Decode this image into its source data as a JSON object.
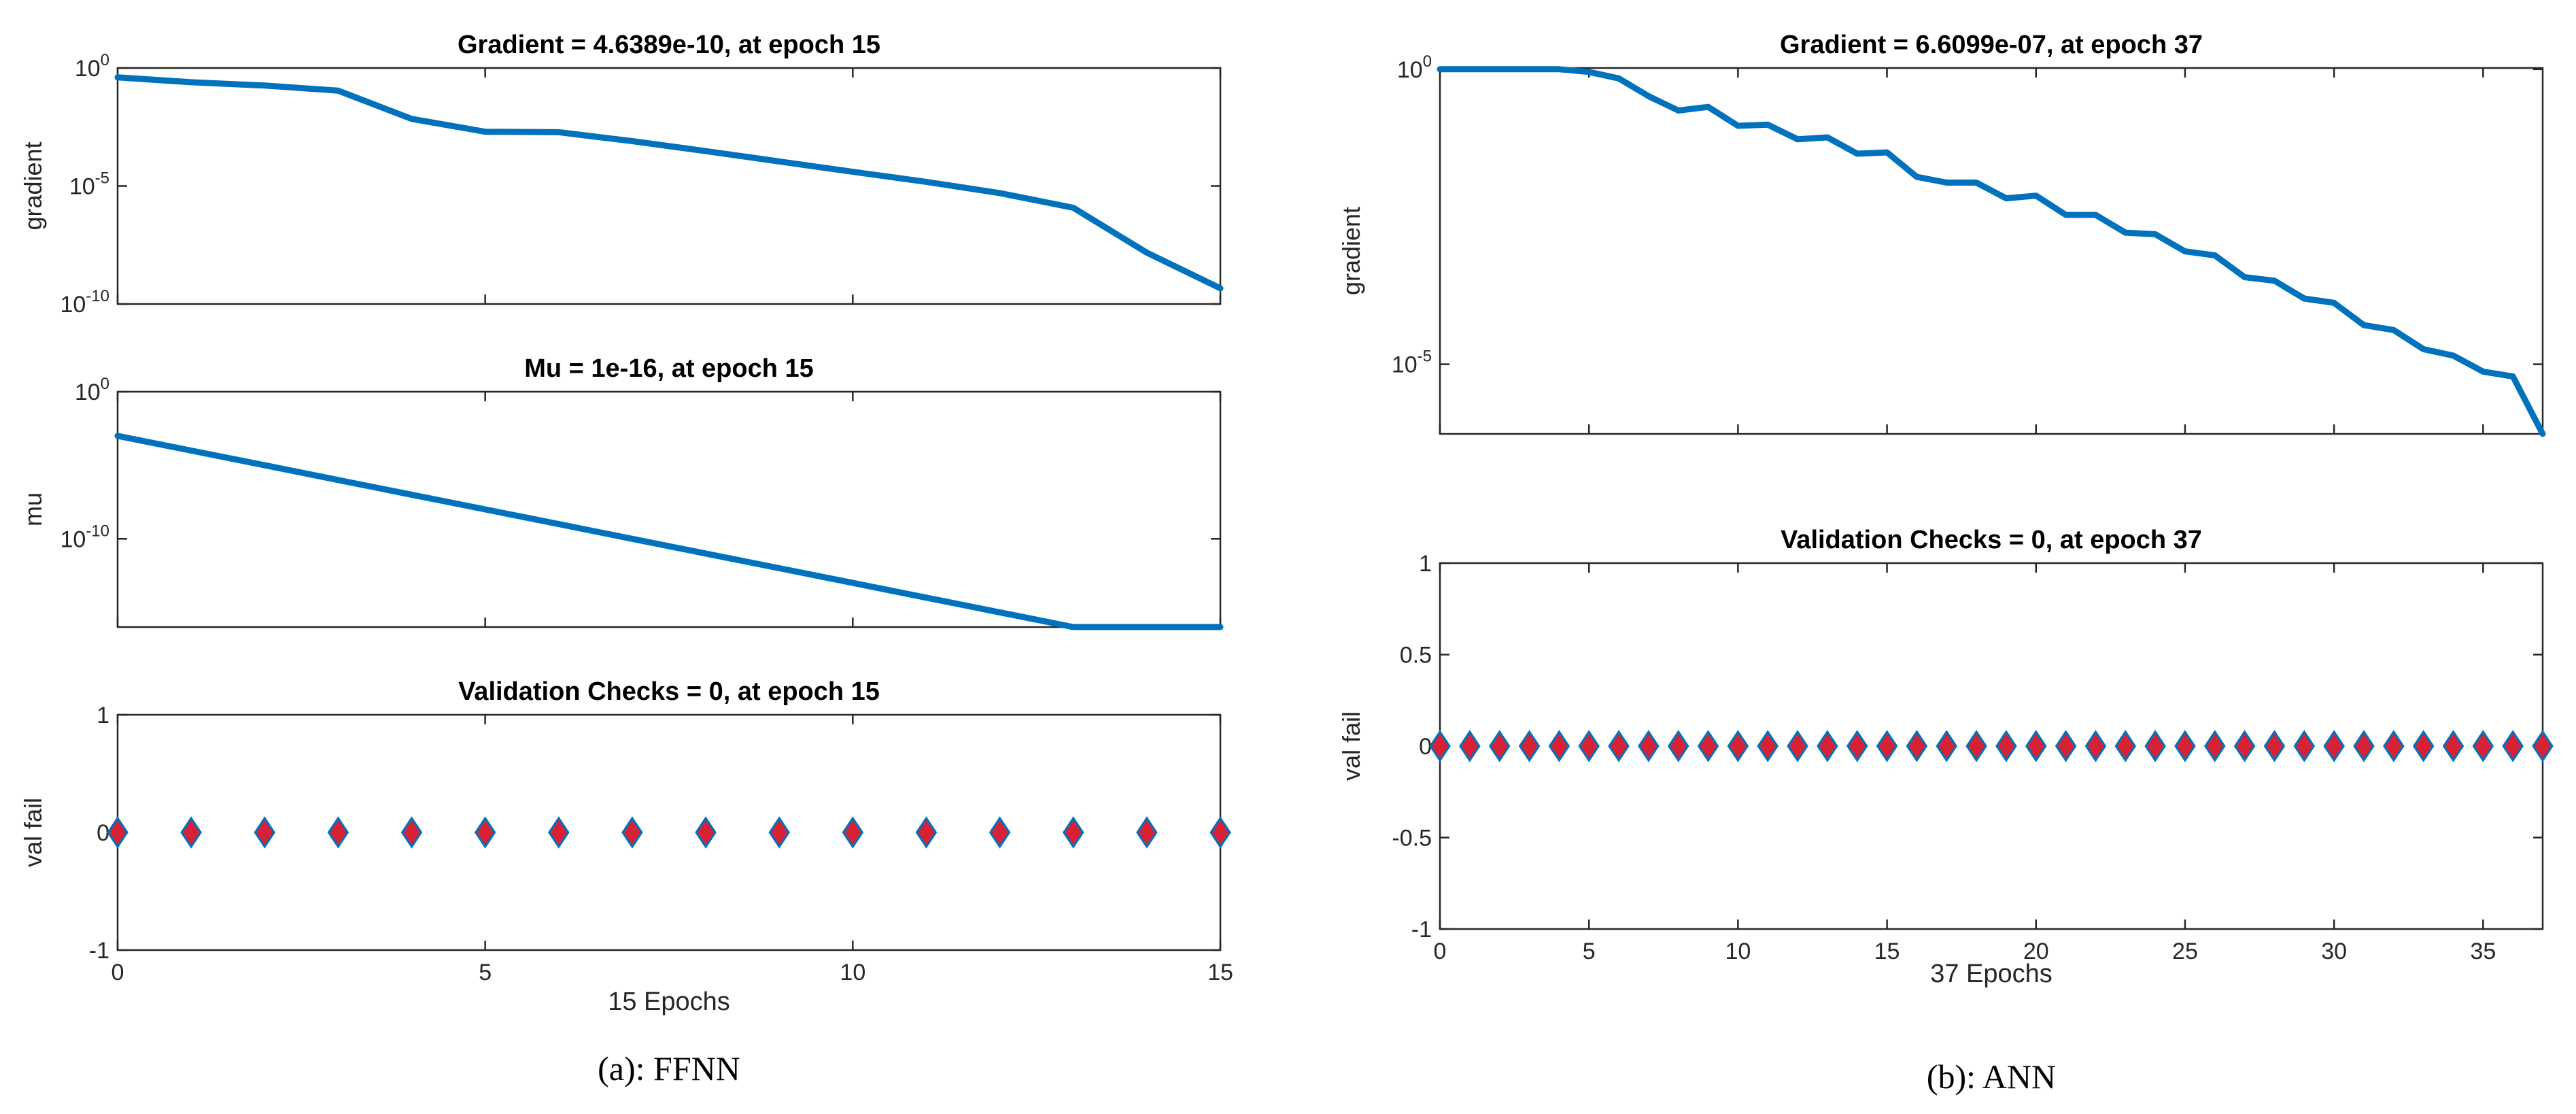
{
  "colors": {
    "line": "#0072bd",
    "marker_fill": "#d62234",
    "marker_edge": "#0072bd",
    "axis": "#262626"
  },
  "panels": [
    {
      "caption": "(a): FFNN",
      "xlabel": "15 Epochs",
      "xlim": [
        0,
        15
      ],
      "xticks": [
        0,
        5,
        10,
        15
      ],
      "charts": [
        {
          "type": "line",
          "title": "Gradient = 4.6389e-10, at epoch 15",
          "ylabel": "gradient",
          "yscale": "log",
          "ylim": [
            1e-10,
            1
          ],
          "yticks": [
            {
              "value": 1,
              "base": "10",
              "exp": "0"
            },
            {
              "value": 1e-05,
              "base": "10",
              "exp": "-5"
            },
            {
              "value": 1e-10,
              "base": "10",
              "exp": "-10"
            }
          ],
          "x": [
            0,
            1,
            2,
            3,
            4,
            5,
            6,
            7,
            8,
            9,
            10,
            11,
            12,
            13,
            14,
            15
          ],
          "values": [
            0.4,
            0.25,
            0.18,
            0.11,
            0.007,
            0.002,
            0.0019,
            0.0008,
            0.0003,
            0.00011,
            4e-05,
            1.5e-05,
            5e-06,
            1.2e-06,
            1.5e-08,
            4.6389e-10
          ]
        },
        {
          "type": "line",
          "title": "Mu = 1e-16, at epoch 15",
          "ylabel": "mu",
          "yscale": "log",
          "ylim": [
            1e-16,
            1
          ],
          "yticks": [
            {
              "value": 1,
              "base": "10",
              "exp": "0"
            },
            {
              "value": 1e-10,
              "base": "10",
              "exp": "-10"
            }
          ],
          "x": [
            0,
            1,
            2,
            3,
            4,
            5,
            6,
            7,
            8,
            9,
            10,
            11,
            12,
            13,
            14,
            15
          ],
          "values": [
            0.001,
            0.0001,
            1e-05,
            1e-06,
            1e-07,
            1e-08,
            1e-09,
            1e-10,
            1e-11,
            1e-12,
            1e-13,
            1e-14,
            1e-15,
            1e-16,
            1e-16,
            1e-16
          ]
        },
        {
          "type": "scatter",
          "title": "Validation Checks = 0, at epoch 15",
          "ylabel": "val fail",
          "yscale": "linear",
          "ylim": [
            -1,
            1
          ],
          "yticks": [
            {
              "value": 1,
              "label": "1"
            },
            {
              "value": 0,
              "label": "0"
            },
            {
              "value": -1,
              "label": "-1"
            }
          ],
          "x": [
            0,
            1,
            2,
            3,
            4,
            5,
            6,
            7,
            8,
            9,
            10,
            11,
            12,
            13,
            14,
            15
          ],
          "values": [
            0,
            0,
            0,
            0,
            0,
            0,
            0,
            0,
            0,
            0,
            0,
            0,
            0,
            0,
            0,
            0
          ]
        }
      ]
    },
    {
      "caption": "(b): ANN",
      "xlabel": "37 Epochs",
      "xlim": [
        0,
        37
      ],
      "xticks": [
        0,
        5,
        10,
        15,
        20,
        25,
        30,
        35
      ],
      "charts": [
        {
          "type": "line",
          "title": "Gradient = 6.6099e-07, at epoch 37",
          "ylabel": "gradient",
          "yscale": "log",
          "ylim": [
            6.6e-07,
            1.05
          ],
          "yticks": [
            {
              "value": 1,
              "base": "10",
              "exp": "0"
            },
            {
              "value": 1e-05,
              "base": "10",
              "exp": "-5"
            }
          ],
          "x": [
            0,
            1,
            2,
            3,
            4,
            5,
            6,
            7,
            8,
            9,
            10,
            11,
            12,
            13,
            14,
            15,
            16,
            17,
            18,
            19,
            20,
            21,
            22,
            23,
            24,
            25,
            26,
            27,
            28,
            29,
            30,
            31,
            32,
            33,
            34,
            35,
            36,
            37
          ],
          "values": [
            1,
            1,
            1,
            1,
            1,
            0.9,
            0.7,
            0.35,
            0.2,
            0.23,
            0.11,
            0.115,
            0.065,
            0.07,
            0.037,
            0.039,
            0.015,
            0.012,
            0.012,
            0.0065,
            0.0072,
            0.0034,
            0.0034,
            0.0017,
            0.0016,
            0.00082,
            0.0007,
            0.0003,
            0.00026,
            0.00013,
            0.00011,
            4.6e-05,
            3.8e-05,
            1.8e-05,
            1.4e-05,
            7.5e-06,
            6.2e-06,
            6.6099e-07
          ]
        },
        {
          "type": "scatter",
          "title": "Validation Checks = 0, at epoch 37",
          "ylabel": "val fail",
          "yscale": "linear",
          "ylim": [
            -1,
            1
          ],
          "yticks": [
            {
              "value": 1,
              "label": "1"
            },
            {
              "value": 0.5,
              "label": "0.5"
            },
            {
              "value": 0,
              "label": "0"
            },
            {
              "value": -0.5,
              "label": "-0.5"
            },
            {
              "value": -1,
              "label": "-1"
            }
          ],
          "x": [
            0,
            1,
            2,
            3,
            4,
            5,
            6,
            7,
            8,
            9,
            10,
            11,
            12,
            13,
            14,
            15,
            16,
            17,
            18,
            19,
            20,
            21,
            22,
            23,
            24,
            25,
            26,
            27,
            28,
            29,
            30,
            31,
            32,
            33,
            34,
            35,
            36,
            37
          ],
          "values": [
            0,
            0,
            0,
            0,
            0,
            0,
            0,
            0,
            0,
            0,
            0,
            0,
            0,
            0,
            0,
            0,
            0,
            0,
            0,
            0,
            0,
            0,
            0,
            0,
            0,
            0,
            0,
            0,
            0,
            0,
            0,
            0,
            0,
            0,
            0,
            0,
            0,
            0
          ]
        }
      ]
    }
  ]
}
